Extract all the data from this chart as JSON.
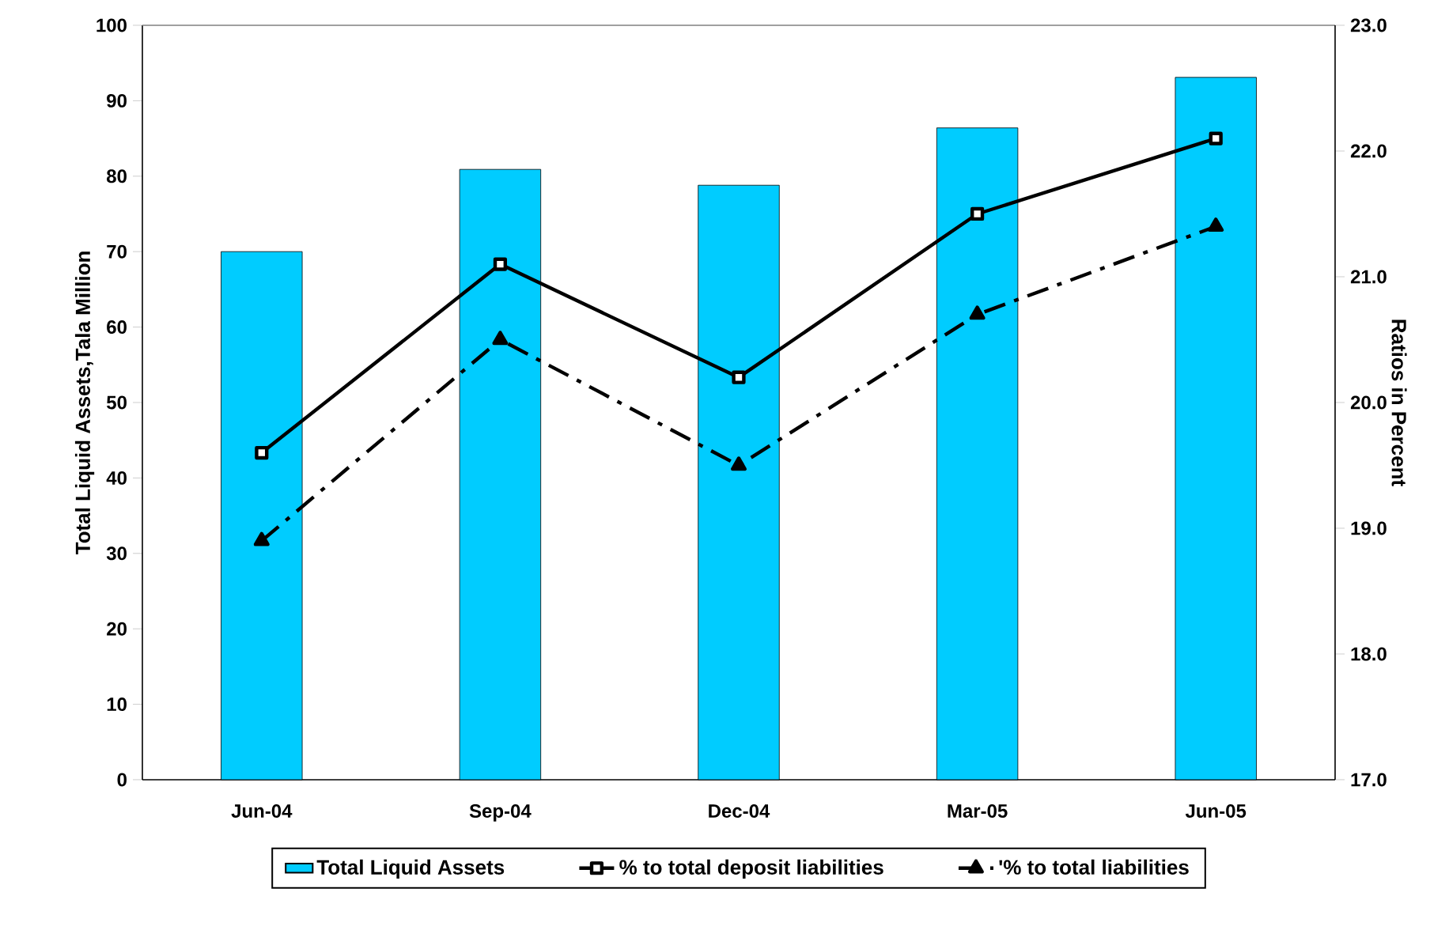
{
  "chart_data": {
    "type": "bar",
    "categories": [
      "Jun-04",
      "Sep-04",
      "Dec-04",
      "Mar-05",
      "Jun-05"
    ],
    "ylabel": "Total Liquid Assets,Tala Million",
    "y2label": "Ratios in Percent",
    "ylim": [
      0,
      100
    ],
    "yticks": [
      0,
      10,
      20,
      30,
      40,
      50,
      60,
      70,
      80,
      90,
      100
    ],
    "y2lim": [
      17,
      23
    ],
    "y2ticks": [
      {
        "value": 17,
        "label": "17.0"
      },
      {
        "value": 18,
        "label": "18.0"
      },
      {
        "value": 19,
        "label": "19.0"
      },
      {
        "value": 20,
        "label": "20.0"
      },
      {
        "value": 21,
        "label": "21.0"
      },
      {
        "value": 22,
        "label": "22.0"
      },
      {
        "value": 23,
        "label": "23.0"
      }
    ],
    "legend": "bottom",
    "grid": false,
    "series": [
      {
        "name": "Total Liquid Assets",
        "color": "#00ccff",
        "values": [
          70.0,
          80.9,
          78.8,
          86.4,
          93.1
        ]
      },
      {
        "name": "% to total deposit liabilities",
        "type": "line",
        "axis": "y2",
        "color": "#000000",
        "marker": "square",
        "line_style": "solid",
        "values": [
          19.6,
          21.1,
          20.2,
          21.5,
          22.1
        ]
      },
      {
        "name": "'% to total liabilities",
        "type": "line",
        "axis": "y2",
        "color": "#000000",
        "marker": "triangle",
        "line_style": "dashed",
        "values": [
          18.9,
          20.5,
          19.5,
          20.7,
          21.4
        ]
      }
    ]
  }
}
